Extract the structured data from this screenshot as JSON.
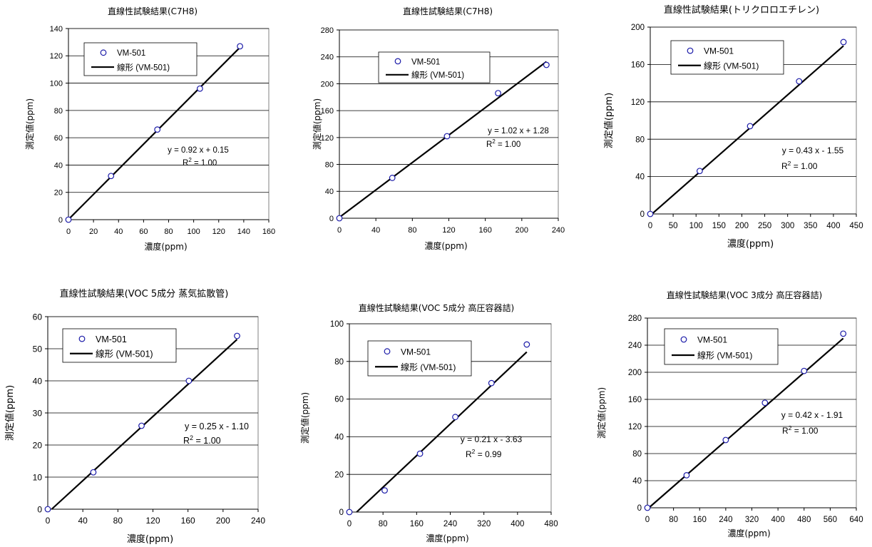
{
  "chart_data": [
    {
      "type": "scatter",
      "title": "直線性試験結果(C7H8)",
      "xlabel": "濃度(ppm)",
      "ylabel": "測定値(ppm)",
      "xlim": [
        0,
        160
      ],
      "ylim": [
        0,
        140
      ],
      "xticks": [
        "0",
        "20",
        "40",
        "60",
        "80",
        "100",
        "120",
        "140",
        "160"
      ],
      "yticks": [
        "0",
        "20",
        "40",
        "60",
        "80",
        "100",
        "120",
        "140"
      ],
      "grid": "horizontal",
      "legend_position": "top-left",
      "series": [
        {
          "name": "VM-501",
          "marker": "circle",
          "x": [
            0,
            34,
            71,
            105,
            137
          ],
          "y": [
            0,
            32,
            66,
            96,
            127
          ]
        },
        {
          "name": "線形 (VM-501)",
          "type": "line",
          "x": [
            0,
            137
          ],
          "y": [
            0.15,
            126.19
          ]
        }
      ],
      "equation": "y = 0.92 x + 0.15",
      "r2_label": "R",
      "r2_value": " = 1.00"
    },
    {
      "type": "scatter",
      "title": "直線性試験結果(C7H8)",
      "xlabel": "濃度(ppm)",
      "ylabel": "測定値(ppm)",
      "xlim": [
        0,
        240
      ],
      "ylim": [
        0,
        280
      ],
      "xticks": [
        "0",
        "40",
        "80",
        "120",
        "160",
        "200",
        "240"
      ],
      "yticks": [
        "0",
        "40",
        "80",
        "120",
        "160",
        "200",
        "240",
        "280"
      ],
      "grid": "horizontal",
      "legend_position": "top-left",
      "series": [
        {
          "name": "VM-501",
          "marker": "circle",
          "x": [
            0,
            58,
            118,
            174,
            227
          ],
          "y": [
            0,
            60,
            122,
            186,
            228
          ]
        },
        {
          "name": "線形 (VM-501)",
          "type": "line",
          "x": [
            0,
            227
          ],
          "y": [
            1.28,
            232.82
          ]
        }
      ],
      "equation": "y = 1.02 x + 1.28",
      "r2_label": "R",
      "r2_value": " = 1.00"
    },
    {
      "type": "scatter",
      "title": "直線性試験結果(トリクロロエチレン)",
      "xlabel": "濃度(ppm)",
      "ylabel": "測定値(ppm)",
      "xlim": [
        0,
        450
      ],
      "ylim": [
        0,
        200
      ],
      "xticks": [
        "0",
        "50",
        "100",
        "150",
        "200",
        "250",
        "300",
        "350",
        "400",
        "450"
      ],
      "yticks": [
        "0",
        "40",
        "80",
        "120",
        "160",
        "200"
      ],
      "grid": "horizontal",
      "legend_position": "top-left",
      "series": [
        {
          "name": "VM-501",
          "marker": "circle",
          "x": [
            0,
            108,
            218,
            325,
            422
          ],
          "y": [
            0,
            46,
            94,
            142,
            184
          ]
        },
        {
          "name": "線形 (VM-501)",
          "type": "line",
          "x": [
            0,
            422
          ],
          "y": [
            -1.55,
            179.91
          ]
        }
      ],
      "equation": "y = 0.43 x - 1.55",
      "r2_label": "R",
      "r2_value": " = 1.00"
    },
    {
      "type": "scatter",
      "title": "直線性試験結果(VOC 5成分 蒸気拡散管)",
      "xlabel": "濃度(ppm)",
      "ylabel": "測定値(ppm)",
      "xlim": [
        0,
        240
      ],
      "ylim": [
        0,
        60
      ],
      "xticks": [
        "0",
        "40",
        "80",
        "120",
        "160",
        "200",
        "240"
      ],
      "yticks": [
        "0",
        "10",
        "20",
        "30",
        "40",
        "50",
        "60"
      ],
      "grid": "horizontal",
      "legend_position": "top-left",
      "series": [
        {
          "name": "VM-501",
          "marker": "circle",
          "x": [
            0,
            52,
            107,
            161,
            216
          ],
          "y": [
            0,
            11.5,
            26,
            40,
            54
          ]
        },
        {
          "name": "線形 (VM-501)",
          "type": "line",
          "x": [
            4.4,
            216
          ],
          "y": [
            0,
            52.9
          ]
        }
      ],
      "equation": "y = 0.25 x - 1.10",
      "r2_label": "R",
      "r2_value": " = 1.00"
    },
    {
      "type": "scatter",
      "title": "直線性試験結果(VOC 5成分 高圧容器詰)",
      "xlabel": "濃度(ppm)",
      "ylabel": "測定値(ppm)",
      "xlim": [
        0,
        480
      ],
      "ylim": [
        0,
        100
      ],
      "xticks": [
        "0",
        "80",
        "160",
        "240",
        "320",
        "400",
        "480"
      ],
      "yticks": [
        "0",
        "20",
        "40",
        "60",
        "80",
        "100"
      ],
      "grid": "horizontal",
      "legend_position": "top-left",
      "series": [
        {
          "name": "VM-501",
          "marker": "circle",
          "x": [
            0,
            84,
            168,
            252,
            338,
            422
          ],
          "y": [
            0,
            11.5,
            31,
            50.5,
            68.5,
            89
          ]
        },
        {
          "name": "線形 (VM-501)",
          "type": "line",
          "x": [
            17.3,
            422
          ],
          "y": [
            0,
            85.0
          ]
        }
      ],
      "equation": "y = 0.21 x - 3.63",
      "r2_label": "R",
      "r2_value": " = 0.99"
    },
    {
      "type": "scatter",
      "title": "直線性試験結果(VOC 3成分 高圧容器詰)",
      "xlabel": "濃度(ppm)",
      "ylabel": "測定値(ppm)",
      "xlim": [
        0,
        640
      ],
      "ylim": [
        0,
        280
      ],
      "xticks": [
        "0",
        "80",
        "160",
        "240",
        "320",
        "400",
        "480",
        "560",
        "640"
      ],
      "yticks": [
        "0",
        "40",
        "80",
        "120",
        "160",
        "200",
        "240",
        "280"
      ],
      "grid": "horizontal",
      "legend_position": "top-left",
      "series": [
        {
          "name": "VM-501",
          "marker": "circle",
          "x": [
            0,
            120,
            240,
            360,
            480,
            600
          ],
          "y": [
            0,
            48,
            100,
            155,
            202,
            257
          ]
        },
        {
          "name": "線形 (VM-501)",
          "type": "line",
          "x": [
            4.5,
            600
          ],
          "y": [
            0,
            250.1
          ]
        }
      ],
      "equation": "y = 0.42 x - 1.91",
      "r2_label": "R",
      "r2_value": " = 1.00"
    }
  ]
}
